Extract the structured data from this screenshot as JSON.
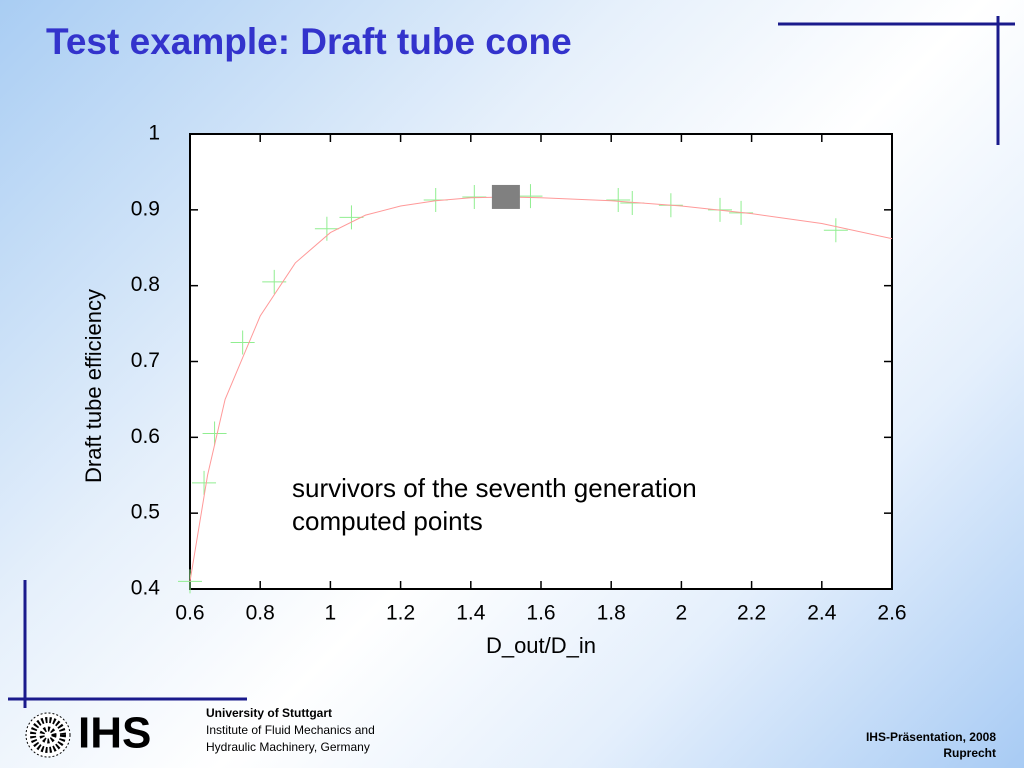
{
  "header": {
    "title": "Test example: Draft tube cone"
  },
  "chart_data": {
    "type": "scatter",
    "xlabel": "D_out/D_in",
    "ylabel": "Draft tube efficiency",
    "xlim": [
      0.6,
      2.6
    ],
    "xticks": [
      0.6,
      0.8,
      1,
      1.2,
      1.4,
      1.6,
      1.8,
      2,
      2.2,
      2.4,
      2.6
    ],
    "ylim": [
      0.4,
      1
    ],
    "yticks": [
      0.4,
      0.5,
      0.6,
      0.7,
      0.8,
      0.9,
      1
    ],
    "series": [
      {
        "name": "survivors of the seventh generation",
        "color": "#90ee90",
        "mode": "markers",
        "x": [
          0.6,
          0.64,
          0.67,
          0.75,
          0.84,
          0.99,
          1.06,
          1.3,
          1.41,
          1.57,
          1.82,
          1.86,
          1.97,
          2.11,
          2.17,
          2.44
        ],
        "y": [
          0.41,
          0.54,
          0.605,
          0.725,
          0.805,
          0.875,
          0.89,
          0.913,
          0.917,
          0.918,
          0.913,
          0.909,
          0.906,
          0.9,
          0.896,
          0.873
        ]
      },
      {
        "name": "computed points",
        "color": "#ff9999",
        "mode": "line",
        "x": [
          0.6,
          0.65,
          0.7,
          0.8,
          0.9,
          1.0,
          1.1,
          1.2,
          1.3,
          1.4,
          1.5,
          1.6,
          1.8,
          2.0,
          2.2,
          2.4,
          2.6
        ],
        "y": [
          0.41,
          0.55,
          0.65,
          0.76,
          0.83,
          0.87,
          0.893,
          0.905,
          0.912,
          0.916,
          0.917,
          0.916,
          0.912,
          0.905,
          0.895,
          0.882,
          0.862
        ]
      },
      {
        "color": "#808080",
        "mode": "square",
        "x": [
          1.5
        ],
        "y": [
          0.917
        ]
      }
    ]
  },
  "footer": {
    "logo": "IHS",
    "university": "University of Stuttgart",
    "institute": [
      "Institute of Fluid Mechanics and",
      "Hydraulic Machinery, Germany"
    ],
    "presentation": "IHS-Präsentation, 2008",
    "author": "Ruprecht"
  }
}
